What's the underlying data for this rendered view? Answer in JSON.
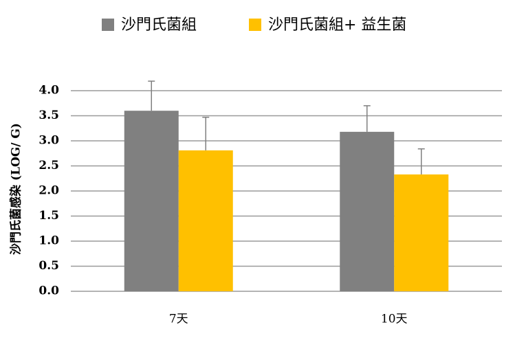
{
  "chart_data": {
    "type": "bar",
    "y_label": "沙門氏菌感染 (LOG/ G)",
    "categories": [
      "7天",
      "10天"
    ],
    "series": [
      {
        "name": "沙門氏菌組",
        "color": "#808080",
        "values": [
          3.6,
          3.18
        ],
        "errors": [
          0.59,
          0.52
        ]
      },
      {
        "name": "沙門氏菌組+ 益生菌",
        "color": "#ffc000",
        "values": [
          2.81,
          2.33
        ],
        "errors": [
          0.66,
          0.51
        ]
      }
    ],
    "ylim": [
      0,
      4
    ],
    "yticks": [
      {
        "value": 0,
        "label": "0.0"
      },
      0.5,
      {
        "value": 1,
        "label": "1.0"
      },
      1.5,
      {
        "value": 2,
        "label": "2.0"
      },
      2.5,
      {
        "value": 3,
        "label": "3.0"
      },
      3.5,
      {
        "value": 4,
        "label": "4.0"
      }
    ],
    "grid": true
  }
}
